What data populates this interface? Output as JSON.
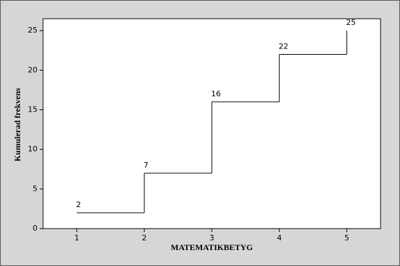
{
  "chart_data": {
    "type": "line",
    "step": "post",
    "x": [
      1,
      2,
      3,
      4,
      5
    ],
    "values": [
      2,
      7,
      16,
      22,
      25
    ],
    "color": "#000000",
    "xlabel": "MATEMATIKBETYG",
    "ylabel": "Kumulerad frekvens",
    "xlim": [
      0.5,
      5.5
    ],
    "xticks": [
      1,
      2,
      3,
      4,
      5
    ],
    "ylim": [
      0,
      26.5
    ],
    "yticks": [
      0,
      5,
      10,
      15,
      20,
      25
    ],
    "data_labels": true
  }
}
